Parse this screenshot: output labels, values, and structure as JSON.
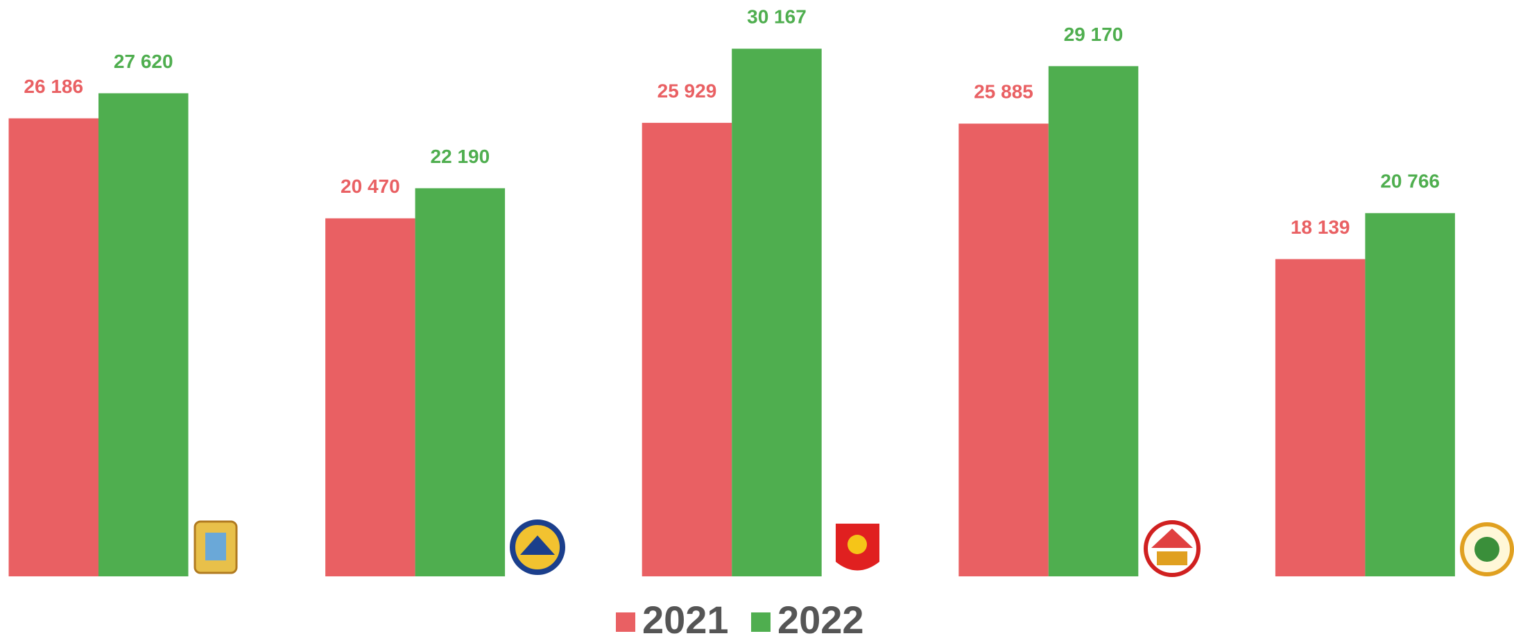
{
  "chart_data": {
    "type": "bar",
    "categories": [
      null,
      null,
      null,
      null,
      null
    ],
    "series": [
      {
        "name": "2021",
        "color": "#e96063",
        "values": [
          26186,
          20470,
          25929,
          25885,
          18139
        ],
        "value_labels": [
          "26 186",
          "20 470",
          "25 929",
          "25 885",
          "18 139"
        ]
      },
      {
        "name": "2022",
        "color": "#4fae4f",
        "values": [
          27620,
          22190,
          30167,
          29170,
          20766
        ],
        "value_labels": [
          "27 620",
          "22 190",
          "30 167",
          "29 170",
          "20 766"
        ]
      }
    ],
    "ylim": [
      0,
      32000
    ]
  }
}
